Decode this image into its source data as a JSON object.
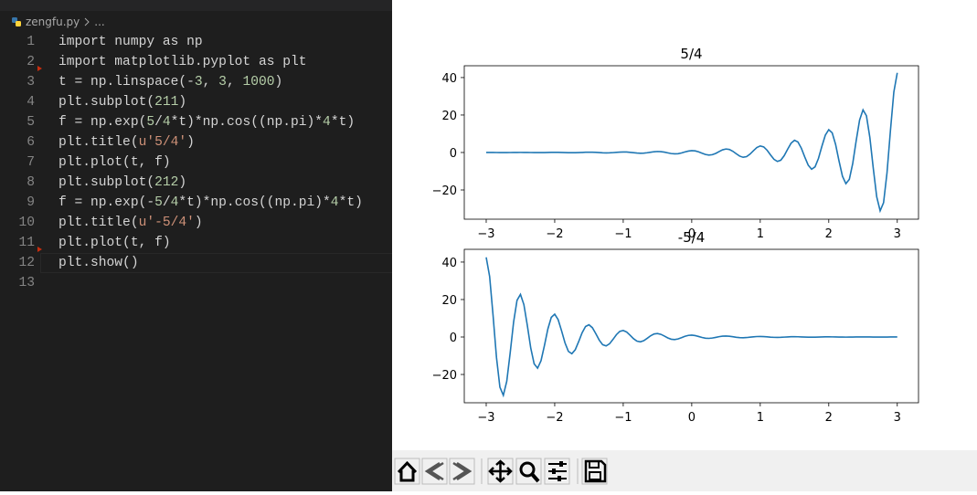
{
  "editor": {
    "file": "zengfu.py",
    "crumb_more": "...",
    "line_numbers": [
      "1",
      "2",
      "3",
      "4",
      "5",
      "6",
      "7",
      "8",
      "9",
      "10",
      "11",
      "12",
      "13"
    ],
    "lines": [
      "import numpy as np",
      "import matplotlib.pyplot as plt",
      "t = np.linspace(-3, 3, 1000)",
      "plt.subplot(211)",
      "f = np.exp(5/4*t)*np.cos((np.pi)*4*t)",
      "plt.title(u'5/4')",
      "plt.plot(t, f)",
      "plt.subplot(212)",
      "f = np.exp(-5/4*t)*np.cos((np.pi)*4*t)",
      "plt.title(u'-5/4')",
      "plt.plot(t, f)",
      "plt.show()"
    ]
  },
  "chart_data": [
    {
      "type": "line",
      "title": "5/4",
      "color": "#1f77b4",
      "xlim": [
        -3.32,
        3.31
      ],
      "ylim": [
        -35.6,
        46.3
      ],
      "xticks": [
        {
          "value": -3,
          "label": "−3"
        },
        {
          "value": -2,
          "label": "−2"
        },
        {
          "value": -1,
          "label": "−1"
        },
        0,
        1,
        2,
        3
      ],
      "yticks": [
        {
          "value": -20,
          "label": "−20"
        },
        0,
        20,
        40
      ],
      "x": [
        -3,
        -2.95,
        -2.9,
        -2.85,
        -2.8,
        -2.75,
        -2.7,
        -2.65,
        -2.6,
        -2.55,
        -2.5,
        -2.45,
        -2.4,
        -2.35,
        -2.3,
        -2.25,
        -2.2,
        -2.15,
        -2.1,
        -2.05,
        -2,
        -1.95,
        -1.9,
        -1.85,
        -1.8,
        -1.75,
        -1.7,
        -1.65,
        -1.6,
        -1.55,
        -1.5,
        -1.45,
        -1.4,
        -1.35,
        -1.3,
        -1.25,
        -1.2,
        -1.15,
        -1.1,
        -1.05,
        -1,
        -0.95,
        -0.9,
        -0.85,
        -0.8,
        -0.75,
        -0.7,
        -0.65,
        -0.6,
        -0.55,
        -0.5,
        -0.45,
        -0.4,
        -0.35,
        -0.3,
        -0.25,
        -0.2,
        -0.15,
        -0.1,
        -0.05,
        0,
        0.05,
        0.1,
        0.15,
        0.2,
        0.25,
        0.3,
        0.35,
        0.4,
        0.45,
        0.5,
        0.55,
        0.6,
        0.65,
        0.7,
        0.75,
        0.8,
        0.85,
        0.9,
        0.95,
        1,
        1.05,
        1.1,
        1.15,
        1.2,
        1.25,
        1.3,
        1.35,
        1.4,
        1.45,
        1.5,
        1.55,
        1.6,
        1.65,
        1.7,
        1.75,
        1.8,
        1.85,
        1.9,
        1.95,
        2,
        2.05,
        2.1,
        2.15,
        2.2,
        2.25,
        2.3,
        2.35,
        2.4,
        2.45,
        2.5,
        2.55,
        2.6,
        2.65,
        2.7,
        2.75,
        2.8,
        2.85,
        2.9,
        2.95,
        3
      ],
      "values": [
        0.024,
        0.02,
        0.008,
        -0.009,
        -0.024,
        -0.032,
        -0.028,
        -0.011,
        0.012,
        0.033,
        0.044,
        0.038,
        0.015,
        -0.016,
        -0.046,
        -0.06,
        -0.052,
        -0.021,
        0.022,
        0.062,
        0.082,
        0.071,
        0.029,
        -0.031,
        -0.085,
        -0.112,
        -0.097,
        -0.039,
        0.042,
        0.117,
        0.153,
        0.132,
        0.054,
        -0.057,
        -0.159,
        -0.21,
        -0.181,
        -0.073,
        0.078,
        0.218,
        0.287,
        0.247,
        0.1,
        -0.107,
        -0.298,
        -0.392,
        -0.337,
        -0.137,
        0.146,
        0.407,
        0.535,
        0.461,
        0.187,
        -0.199,
        -0.556,
        -0.732,
        -0.63,
        -0.256,
        0.273,
        0.76,
        1,
        0.861,
        0.35,
        -0.373,
        -1.039,
        -1.367,
        -1.177,
        -0.479,
        0.51,
        1.42,
        1.868,
        1.609,
        0.654,
        -0.696,
        -1.941,
        -2.554,
        -2.199,
        -0.894,
        0.952,
        2.653,
        3.49,
        3.006,
        1.222,
        -1.301,
        -3.626,
        -4.771,
        -4.108,
        -1.67,
        1.778,
        4.956,
        6.521,
        5.616,
        2.283,
        -2.43,
        -6.774,
        -8.913,
        -7.676,
        -3.121,
        3.322,
        9.259,
        12.18,
        10.49,
        4.27,
        -4.54,
        -12.66,
        -16.65,
        -14.34,
        -5.83,
        6.21,
        17.3,
        22.76,
        19.6,
        7.97,
        -8.48,
        -23.64,
        -31.11,
        -26.79,
        -10.89,
        11.6,
        32.32,
        42.52
      ]
    },
    {
      "type": "line",
      "title": "-5/4",
      "color": "#1f77b4",
      "xlim": [
        -3.32,
        3.31
      ],
      "ylim": [
        -35.1,
        46.8
      ],
      "xticks": [
        {
          "value": -3,
          "label": "−3"
        },
        {
          "value": -2,
          "label": "−2"
        },
        {
          "value": -1,
          "label": "−1"
        },
        0,
        1,
        2,
        3
      ],
      "yticks": [
        {
          "value": -20,
          "label": "−20"
        },
        0,
        20,
        40
      ],
      "x": [
        -3,
        -2.95,
        -2.9,
        -2.85,
        -2.8,
        -2.75,
        -2.7,
        -2.65,
        -2.6,
        -2.55,
        -2.5,
        -2.45,
        -2.4,
        -2.35,
        -2.3,
        -2.25,
        -2.2,
        -2.15,
        -2.1,
        -2.05,
        -2,
        -1.95,
        -1.9,
        -1.85,
        -1.8,
        -1.75,
        -1.7,
        -1.65,
        -1.6,
        -1.55,
        -1.5,
        -1.45,
        -1.4,
        -1.35,
        -1.3,
        -1.25,
        -1.2,
        -1.15,
        -1.1,
        -1.05,
        -1,
        -0.95,
        -0.9,
        -0.85,
        -0.8,
        -0.75,
        -0.7,
        -0.65,
        -0.6,
        -0.55,
        -0.5,
        -0.45,
        -0.4,
        -0.35,
        -0.3,
        -0.25,
        -0.2,
        -0.15,
        -0.1,
        -0.05,
        0,
        0.05,
        0.1,
        0.15,
        0.2,
        0.25,
        0.3,
        0.35,
        0.4,
        0.45,
        0.5,
        0.55,
        0.6,
        0.65,
        0.7,
        0.75,
        0.8,
        0.85,
        0.9,
        0.95,
        1,
        1.05,
        1.1,
        1.15,
        1.2,
        1.25,
        1.3,
        1.35,
        1.4,
        1.45,
        1.5,
        1.55,
        1.6,
        1.65,
        1.7,
        1.75,
        1.8,
        1.85,
        1.9,
        1.95,
        2,
        2.05,
        2.1,
        2.15,
        2.2,
        2.25,
        2.3,
        2.35,
        2.4,
        2.45,
        2.5,
        2.55,
        2.6,
        2.65,
        2.7,
        2.75,
        2.8,
        2.85,
        2.9,
        2.95,
        3
      ],
      "values": [
        42.52,
        32.32,
        11.6,
        -10.89,
        -26.79,
        -31.11,
        -23.64,
        -8.48,
        7.97,
        19.6,
        22.76,
        17.3,
        6.21,
        -5.83,
        -14.34,
        -16.65,
        -12.66,
        -4.54,
        4.27,
        10.49,
        12.18,
        9.259,
        3.322,
        -3.121,
        -7.676,
        -8.913,
        -6.774,
        -2.43,
        2.283,
        5.616,
        6.521,
        4.956,
        1.778,
        -1.67,
        -4.108,
        -4.771,
        -3.626,
        -1.301,
        1.222,
        3.006,
        3.49,
        2.653,
        0.952,
        -0.894,
        -2.199,
        -2.554,
        -1.941,
        -0.696,
        0.654,
        1.609,
        1.868,
        1.42,
        0.51,
        -0.479,
        -1.177,
        -1.367,
        -1.039,
        -0.373,
        0.35,
        0.861,
        1,
        0.76,
        0.273,
        -0.256,
        -0.63,
        -0.732,
        -0.556,
        -0.199,
        0.187,
        0.461,
        0.535,
        0.407,
        0.146,
        -0.137,
        -0.337,
        -0.392,
        -0.298,
        -0.107,
        0.1,
        0.247,
        0.287,
        0.218,
        0.078,
        -0.073,
        -0.181,
        -0.21,
        -0.159,
        -0.057,
        0.054,
        0.132,
        0.153,
        0.117,
        0.042,
        -0.039,
        -0.097,
        -0.112,
        -0.085,
        -0.031,
        0.029,
        0.071,
        0.082,
        0.062,
        0.022,
        -0.021,
        -0.052,
        -0.06,
        -0.046,
        -0.016,
        0.015,
        0.038,
        0.044,
        0.033,
        0.012,
        -0.011,
        -0.028,
        -0.032,
        -0.024,
        -0.009,
        0.008,
        0.02,
        0.024
      ]
    }
  ]
}
